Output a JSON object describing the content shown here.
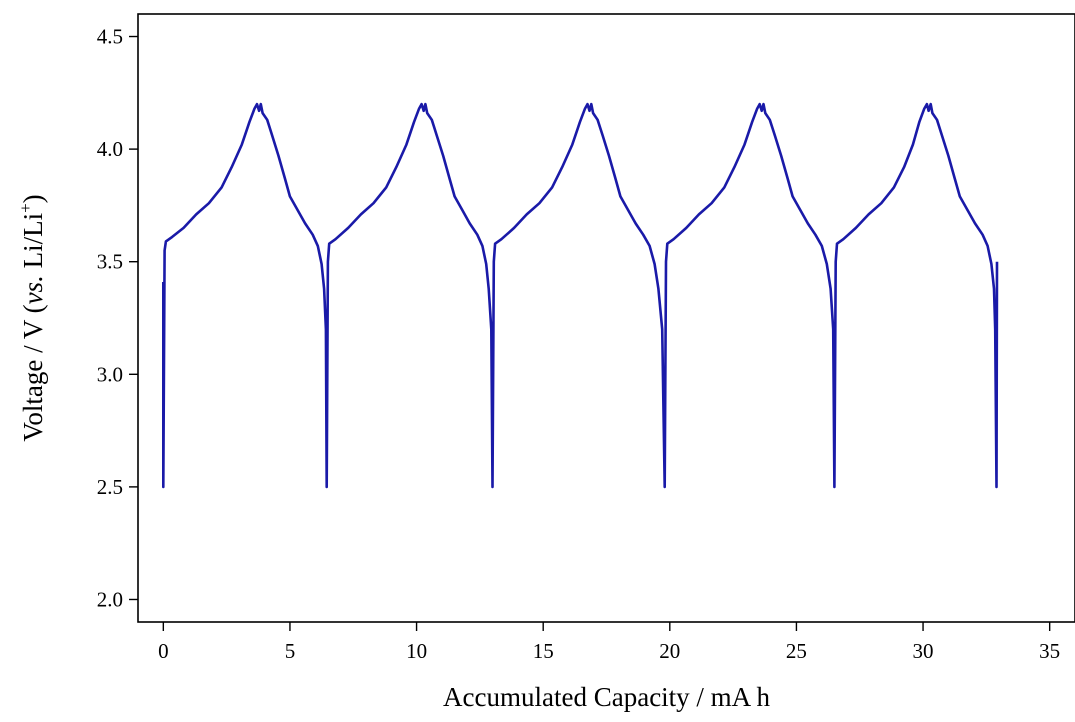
{
  "chart_data": {
    "type": "line",
    "title": "",
    "xlabel": "Accumulated Capacity / mA h",
    "ylabel_parts": {
      "prefix": "Voltage / V (",
      "italic": "vs.",
      "mid": " Li/Li",
      "sup": "+",
      "suffix": ")"
    },
    "xlim": [
      -1,
      36
    ],
    "ylim": [
      1.9,
      4.6
    ],
    "x_ticks": [
      0,
      5,
      10,
      15,
      20,
      25,
      30,
      35
    ],
    "x_tick_labels": [
      "0",
      "5",
      "10",
      "15",
      "20",
      "25",
      "30",
      "35"
    ],
    "y_ticks": [
      2.0,
      2.5,
      3.0,
      3.5,
      4.0,
      4.5
    ],
    "y_tick_labels": [
      "2.0",
      "2.5",
      "3.0",
      "3.5",
      "4.0",
      "4.5"
    ],
    "grid": false,
    "legend": "none",
    "line_color": "#1a1aa8",
    "series": [
      {
        "points": [
          [
            0.0,
            3.41
          ],
          [
            0.0,
            2.5
          ],
          [
            0.05,
            3.55
          ],
          [
            0.1,
            3.59
          ],
          [
            0.35,
            3.61
          ],
          [
            0.8,
            3.65
          ],
          [
            1.3,
            3.71
          ],
          [
            1.8,
            3.76
          ],
          [
            2.3,
            3.83
          ],
          [
            2.7,
            3.92
          ],
          [
            3.1,
            4.02
          ],
          [
            3.4,
            4.12
          ],
          [
            3.6,
            4.18
          ],
          [
            3.7,
            4.2
          ],
          [
            3.78,
            4.17
          ],
          [
            3.85,
            4.2
          ],
          [
            3.92,
            4.16
          ],
          [
            4.1,
            4.13
          ],
          [
            4.3,
            4.06
          ],
          [
            4.55,
            3.97
          ],
          [
            4.8,
            3.87
          ],
          [
            5.0,
            3.79
          ],
          [
            5.3,
            3.73
          ],
          [
            5.6,
            3.67
          ],
          [
            5.9,
            3.62
          ],
          [
            6.1,
            3.57
          ],
          [
            6.25,
            3.49
          ],
          [
            6.35,
            3.38
          ],
          [
            6.42,
            3.2
          ],
          [
            6.45,
            2.5
          ],
          [
            6.5,
            3.5
          ],
          [
            6.55,
            3.58
          ],
          [
            6.8,
            3.6
          ],
          [
            7.3,
            3.65
          ],
          [
            7.8,
            3.71
          ],
          [
            8.3,
            3.76
          ],
          [
            8.8,
            3.83
          ],
          [
            9.2,
            3.92
          ],
          [
            9.6,
            4.02
          ],
          [
            9.9,
            4.12
          ],
          [
            10.1,
            4.18
          ],
          [
            10.2,
            4.2
          ],
          [
            10.28,
            4.17
          ],
          [
            10.35,
            4.2
          ],
          [
            10.42,
            4.16
          ],
          [
            10.6,
            4.13
          ],
          [
            10.8,
            4.06
          ],
          [
            11.05,
            3.97
          ],
          [
            11.3,
            3.87
          ],
          [
            11.5,
            3.79
          ],
          [
            11.8,
            3.73
          ],
          [
            12.1,
            3.67
          ],
          [
            12.4,
            3.62
          ],
          [
            12.6,
            3.57
          ],
          [
            12.75,
            3.49
          ],
          [
            12.85,
            3.38
          ],
          [
            12.95,
            3.2
          ],
          [
            13.0,
            2.5
          ],
          [
            13.05,
            3.5
          ],
          [
            13.1,
            3.58
          ],
          [
            13.35,
            3.6
          ],
          [
            13.85,
            3.65
          ],
          [
            14.35,
            3.71
          ],
          [
            14.85,
            3.76
          ],
          [
            15.35,
            3.83
          ],
          [
            15.75,
            3.92
          ],
          [
            16.15,
            4.02
          ],
          [
            16.45,
            4.12
          ],
          [
            16.65,
            4.18
          ],
          [
            16.75,
            4.2
          ],
          [
            16.83,
            4.17
          ],
          [
            16.9,
            4.2
          ],
          [
            16.97,
            4.16
          ],
          [
            17.15,
            4.13
          ],
          [
            17.35,
            4.06
          ],
          [
            17.6,
            3.97
          ],
          [
            17.85,
            3.87
          ],
          [
            18.05,
            3.79
          ],
          [
            18.35,
            3.73
          ],
          [
            18.65,
            3.67
          ],
          [
            18.95,
            3.62
          ],
          [
            19.2,
            3.57
          ],
          [
            19.4,
            3.49
          ],
          [
            19.55,
            3.38
          ],
          [
            19.7,
            3.2
          ],
          [
            19.8,
            2.5
          ],
          [
            19.85,
            3.5
          ],
          [
            19.9,
            3.58
          ],
          [
            20.15,
            3.6
          ],
          [
            20.65,
            3.65
          ],
          [
            21.15,
            3.71
          ],
          [
            21.65,
            3.76
          ],
          [
            22.15,
            3.83
          ],
          [
            22.55,
            3.92
          ],
          [
            22.95,
            4.02
          ],
          [
            23.25,
            4.12
          ],
          [
            23.45,
            4.18
          ],
          [
            23.55,
            4.2
          ],
          [
            23.63,
            4.17
          ],
          [
            23.7,
            4.2
          ],
          [
            23.77,
            4.16
          ],
          [
            23.95,
            4.13
          ],
          [
            24.15,
            4.06
          ],
          [
            24.4,
            3.97
          ],
          [
            24.65,
            3.87
          ],
          [
            24.85,
            3.79
          ],
          [
            25.15,
            3.73
          ],
          [
            25.45,
            3.67
          ],
          [
            25.75,
            3.62
          ],
          [
            26.0,
            3.57
          ],
          [
            26.2,
            3.49
          ],
          [
            26.35,
            3.38
          ],
          [
            26.45,
            3.2
          ],
          [
            26.5,
            2.5
          ],
          [
            26.55,
            3.5
          ],
          [
            26.6,
            3.58
          ],
          [
            26.85,
            3.6
          ],
          [
            27.35,
            3.65
          ],
          [
            27.85,
            3.71
          ],
          [
            28.35,
            3.76
          ],
          [
            28.85,
            3.83
          ],
          [
            29.25,
            3.92
          ],
          [
            29.6,
            4.02
          ],
          [
            29.85,
            4.12
          ],
          [
            30.05,
            4.18
          ],
          [
            30.15,
            4.2
          ],
          [
            30.22,
            4.17
          ],
          [
            30.3,
            4.2
          ],
          [
            30.37,
            4.16
          ],
          [
            30.55,
            4.13
          ],
          [
            30.75,
            4.06
          ],
          [
            31.0,
            3.97
          ],
          [
            31.25,
            3.87
          ],
          [
            31.45,
            3.79
          ],
          [
            31.75,
            3.73
          ],
          [
            32.05,
            3.67
          ],
          [
            32.35,
            3.62
          ],
          [
            32.55,
            3.57
          ],
          [
            32.7,
            3.49
          ],
          [
            32.8,
            3.38
          ],
          [
            32.85,
            3.2
          ],
          [
            32.9,
            2.5
          ],
          [
            32.92,
            3.5
          ]
        ]
      }
    ]
  }
}
